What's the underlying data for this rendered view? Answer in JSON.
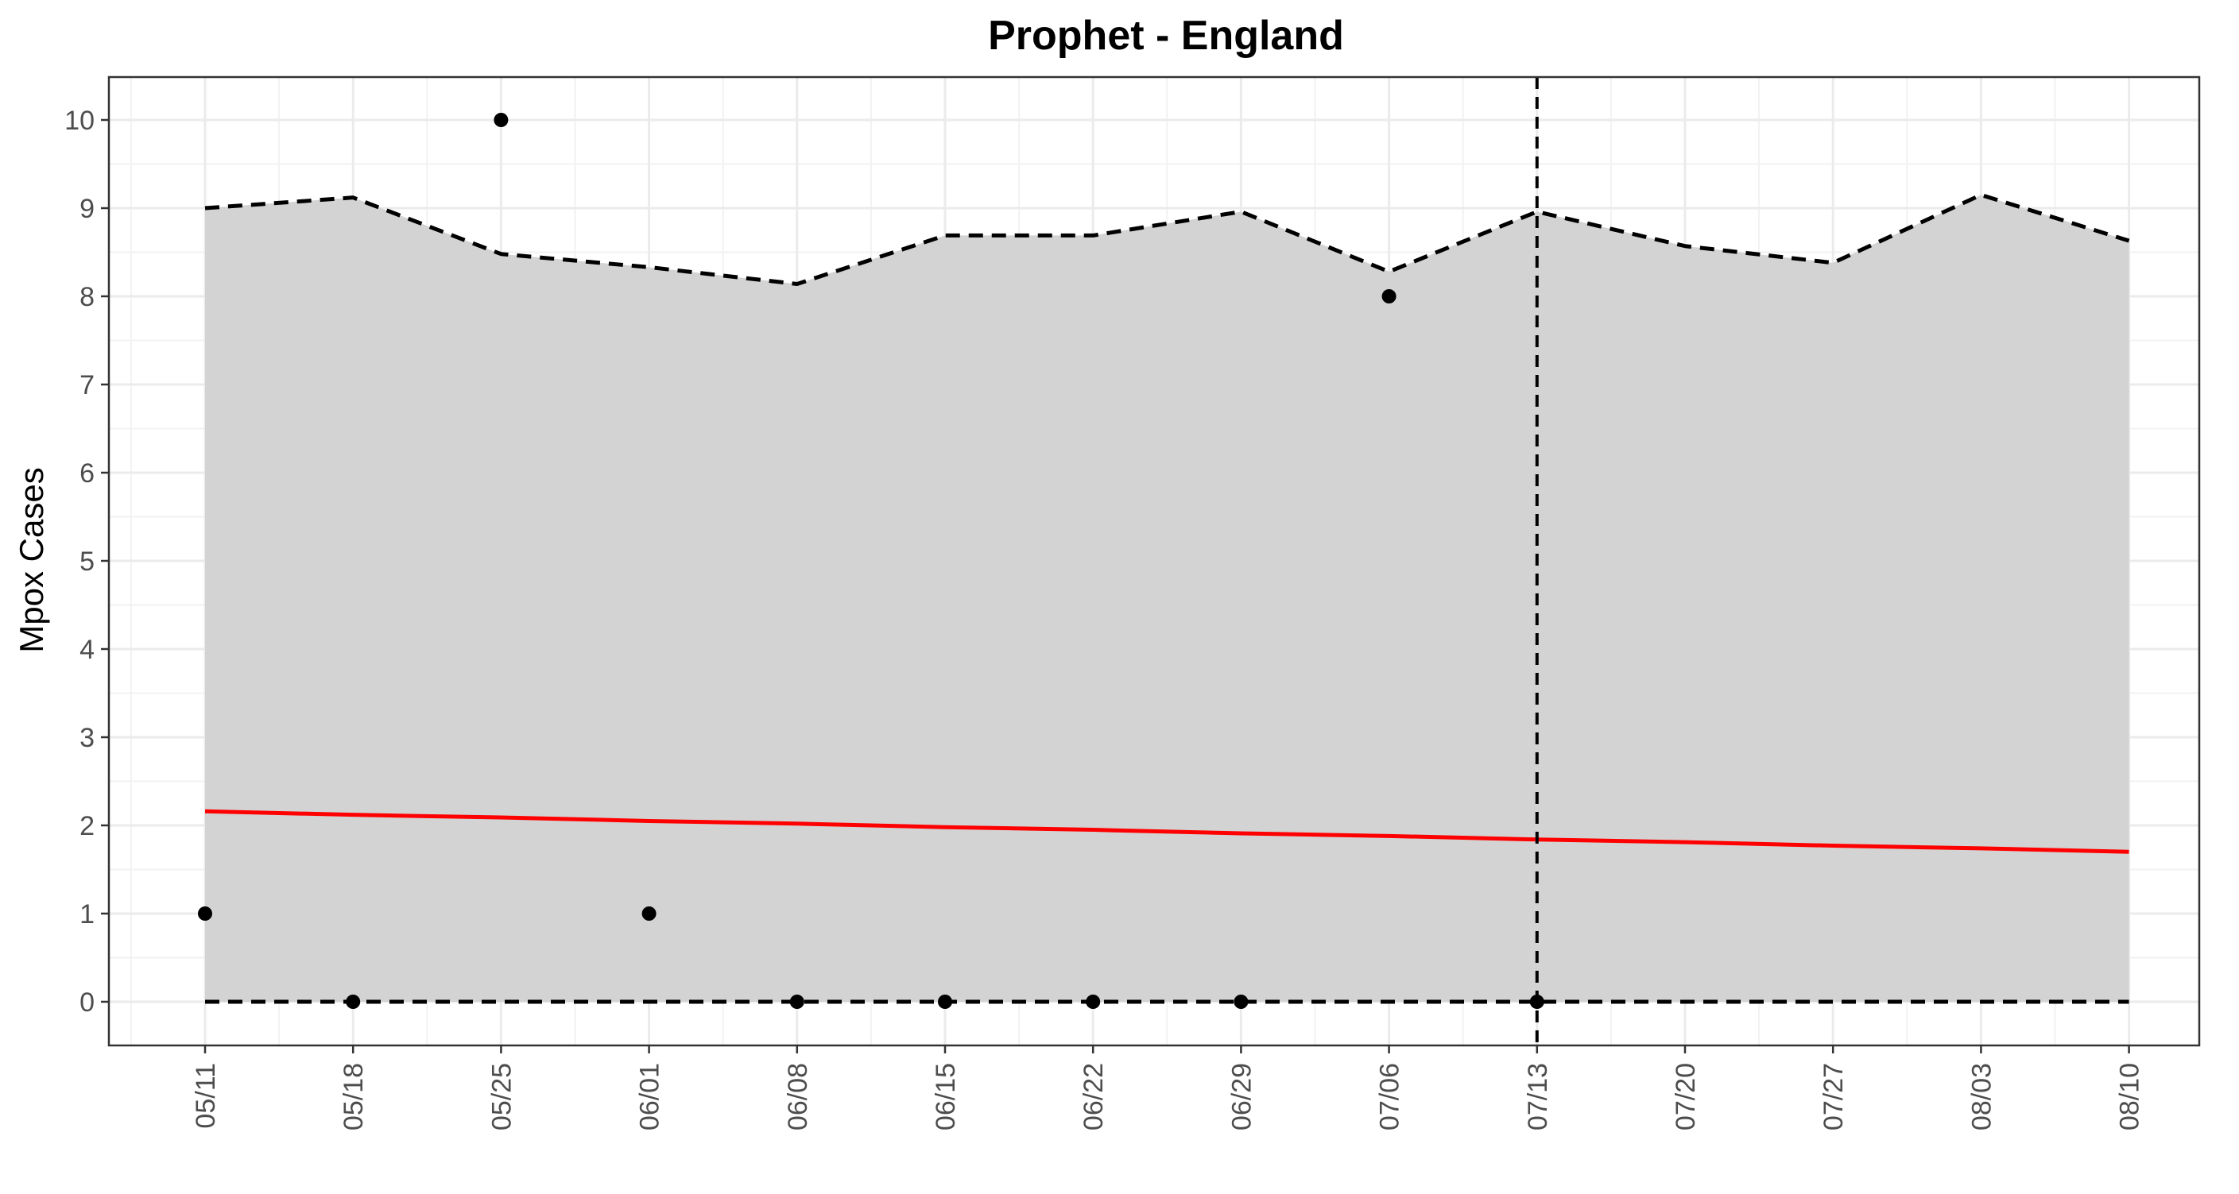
{
  "chart_data": {
    "type": "line",
    "title": "Prophet - England",
    "xlabel": "",
    "ylabel": "Mpox Cases",
    "x": [
      "05/11",
      "05/18",
      "05/25",
      "06/01",
      "06/08",
      "06/15",
      "06/22",
      "06/29",
      "07/06",
      "07/13",
      "07/20",
      "07/27",
      "08/03",
      "08/10"
    ],
    "ylim": [
      -0.5,
      10.5
    ],
    "yticks": [
      0,
      1,
      2,
      3,
      4,
      5,
      6,
      7,
      8,
      9,
      10
    ],
    "grid": true,
    "series": [
      {
        "kind": "prediction_interval_upper",
        "style": "dashed",
        "color": "#000000",
        "values": [
          9.0,
          9.12,
          8.48,
          8.33,
          8.14,
          8.69,
          8.69,
          8.96,
          8.28,
          8.96,
          8.57,
          8.38,
          9.15,
          8.63
        ]
      },
      {
        "kind": "prediction_interval_lower",
        "style": "dashed",
        "color": "#000000",
        "values": [
          0,
          0,
          0,
          0,
          0,
          0,
          0,
          0,
          0,
          0,
          0,
          0,
          0,
          0
        ]
      },
      {
        "kind": "forecast",
        "style": "solid",
        "color": "#ff0000",
        "values": [
          2.16,
          2.12,
          2.09,
          2.05,
          2.02,
          1.98,
          1.95,
          1.91,
          1.88,
          1.84,
          1.81,
          1.77,
          1.74,
          1.7
        ]
      },
      {
        "kind": "observed",
        "style": "points",
        "color": "#000000",
        "x": [
          "05/11",
          "05/18",
          "05/25",
          "06/01",
          "06/08",
          "06/15",
          "06/22",
          "06/29",
          "07/06",
          "07/13"
        ],
        "values": [
          1,
          0,
          10,
          1,
          0,
          0,
          0,
          0,
          8,
          0
        ]
      }
    ],
    "interval_fill": "#d3d3d3",
    "vline": {
      "x": "07/13",
      "style": "dashed",
      "color": "#000000"
    }
  }
}
